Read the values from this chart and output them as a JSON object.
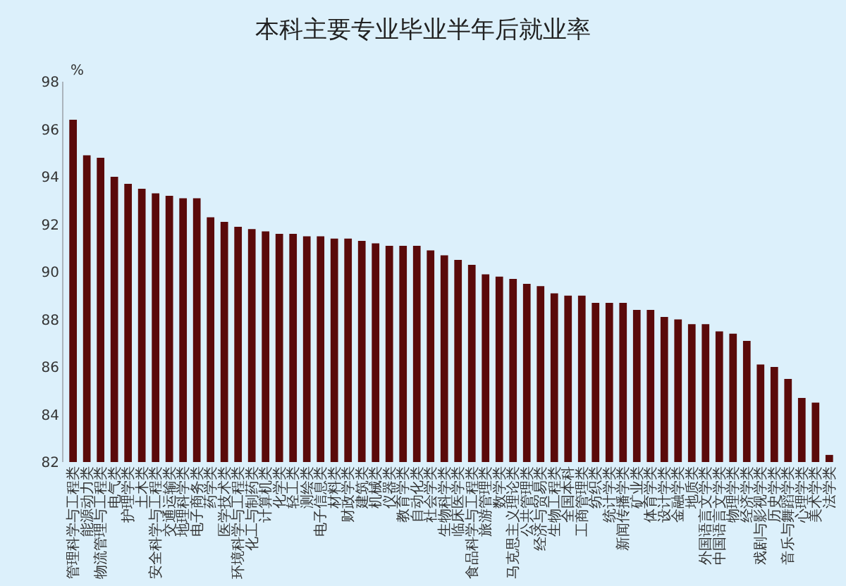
{
  "chart_data": {
    "type": "bar",
    "title": "本科主要专业毕业半年后就业率",
    "ylabel": "%",
    "categories": [
      "管理科学与工程类",
      "能源动力类",
      "物流管理与工程类",
      "电气类",
      "护理学类",
      "土木类",
      "安全科学与工程类",
      "交通运输类",
      "地理科学类",
      "电子商务类",
      "药学类",
      "医学技术类",
      "环境科学与工程类",
      "化工与制药类",
      "计算机类",
      "化学类",
      "轻工类",
      "测绘类",
      "电子信息类",
      "材料类",
      "财政学类",
      "建筑类",
      "机械类",
      "仪器类",
      "教育学类",
      "自动化类",
      "社会学类",
      "生物科学类",
      "临床医学类",
      "食品科学与工程类",
      "旅游管理类",
      "数学类",
      "马克思主义理论类",
      "公共管理类",
      "经济与贸易类",
      "生物工程类",
      "全国本科",
      "工商管理类",
      "纺织类",
      "统计学类",
      "新闻传播学类",
      "矿业类",
      "体育学类",
      "设计学类",
      "金融学类",
      "地质类",
      "外国语言文学类",
      "中国语言文学类",
      "物理学类",
      "经济学类",
      "戏剧与影视学类",
      "历史学类",
      "音乐与舞蹈学类",
      "心理学类",
      "美术学类",
      "法学类"
    ],
    "values": [
      96.4,
      94.9,
      94.8,
      94.0,
      93.7,
      93.5,
      93.3,
      93.2,
      93.1,
      93.1,
      92.3,
      92.1,
      91.9,
      91.8,
      91.7,
      91.6,
      91.6,
      91.5,
      91.5,
      91.4,
      91.4,
      91.3,
      91.2,
      91.1,
      91.1,
      91.1,
      90.9,
      90.7,
      90.5,
      90.3,
      89.9,
      89.8,
      89.7,
      89.5,
      89.4,
      89.1,
      89.0,
      89.0,
      88.7,
      88.7,
      88.7,
      88.4,
      88.4,
      88.1,
      88.0,
      87.8,
      87.8,
      87.5,
      87.4,
      87.1,
      86.1,
      86.0,
      85.5,
      84.7,
      84.5,
      82.3
    ],
    "color": "#5a0a0a",
    "ylim": [
      82,
      98
    ],
    "yticks": [
      82,
      84,
      86,
      88,
      90,
      92,
      94,
      96,
      98
    ],
    "grid": false,
    "legend": false
  }
}
